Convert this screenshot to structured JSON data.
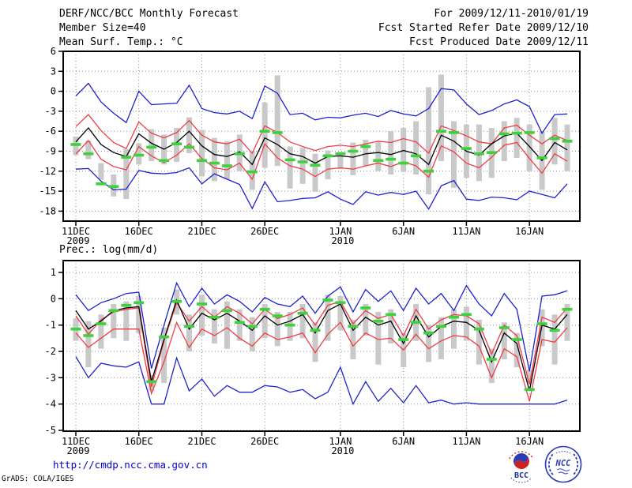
{
  "header": {
    "title": "DERF/NCC/BCC Monthly Forecast",
    "for_range": "For 2009/12/11-2010/01/19",
    "member_size": "Member Size=40",
    "fcst_started": "Fcst Started Refer Date 2009/12/10",
    "panel1_title": "Mean Surf. Temp.: °C",
    "fcst_produced": "Fcst Produced Date 2009/12/11",
    "panel2_title": "Prec.: log(mm/d)"
  },
  "footer": {
    "url": "http://cmdp.ncc.cma.gov.cn",
    "credit": "GrADS: COLA/IGES",
    "logos": {
      "bcc_label": "BCC",
      "ncc_label": "NCC"
    }
  },
  "palette": {
    "blue": "#1e22cc",
    "red": "#f03c46",
    "black": "#000000",
    "green": "#3cd23c",
    "gray_bar": "#c9c9c9",
    "grid": "#8f8f8f",
    "url_blue": "#0000cd",
    "logo_blue": "#2a3cb4",
    "logo_red": "#cc2222"
  },
  "chart_data": [
    {
      "type": "line",
      "title": "Mean Surf. Temp.: °C",
      "ylabel": "degC",
      "ylim": [
        6,
        -18
      ],
      "yticks": [
        6,
        3,
        0,
        -3,
        -6,
        -9,
        -12,
        -15,
        -18
      ],
      "n_points": 40,
      "x_start": "2009-12-11",
      "x_end": "2010-01-19",
      "x_ticks": [
        {
          "day": 0,
          "label": "11DEC",
          "sub": "2009"
        },
        {
          "day": 5,
          "label": "16DEC"
        },
        {
          "day": 10,
          "label": "21DEC"
        },
        {
          "day": 15,
          "label": "26DEC"
        },
        {
          "day": 21,
          "label": "1JAN",
          "sub": "2010"
        },
        {
          "day": 26,
          "label": "6JAN"
        },
        {
          "day": 31,
          "label": "11JAN"
        },
        {
          "day": 36,
          "label": "16JAN"
        }
      ],
      "series": [
        {
          "name": "ensemble-max",
          "color_key": "blue",
          "values": [
            -0.7,
            1.2,
            -1.6,
            -3.3,
            -4.7,
            0.0,
            -2.0,
            -1.9,
            -1.8,
            0.9,
            -2.6,
            -3.2,
            -3.4,
            -3.0,
            -4.1,
            0.8,
            -0.3,
            -3.5,
            -3.3,
            -4.3,
            -3.9,
            -4.0,
            -3.6,
            -3.3,
            -3.8,
            -2.9,
            -3.4,
            -3.7,
            -2.6,
            0.4,
            0.2,
            -1.9,
            -3.5,
            -2.9,
            -1.9,
            -1.3,
            -2.3,
            -6.3,
            -3.5,
            -3.4
          ]
        },
        {
          "name": "ensemble-mean-plus-spread",
          "color_key": "red",
          "values": [
            -5.3,
            -3.5,
            -5.9,
            -7.7,
            -8.6,
            -4.6,
            -6.3,
            -7.0,
            -6.2,
            -4.4,
            -6.6,
            -7.6,
            -7.9,
            -7.2,
            -9.3,
            -5.2,
            -6.2,
            -7.6,
            -8.3,
            -8.9,
            -8.3,
            -8.1,
            -8.3,
            -7.9,
            -7.5,
            -7.7,
            -7.1,
            -7.6,
            -9.3,
            -5.2,
            -5.9,
            -6.7,
            -7.6,
            -7.9,
            -5.5,
            -5.1,
            -6.6,
            -7.9,
            -6.6,
            -7.4
          ]
        },
        {
          "name": "ensemble-mean-minus-spread",
          "color_key": "red",
          "values": [
            -9.4,
            -7.4,
            -10.2,
            -11.3,
            -11.8,
            -8.3,
            -9.7,
            -10.7,
            -9.6,
            -7.9,
            -10.1,
            -11.5,
            -11.8,
            -10.8,
            -13.2,
            -7.9,
            -10.0,
            -11.2,
            -11.7,
            -12.8,
            -11.7,
            -11.5,
            -11.7,
            -11.2,
            -10.8,
            -11.3,
            -10.6,
            -11.2,
            -12.9,
            -8.2,
            -9.1,
            -10.8,
            -11.5,
            -9.9,
            -8.1,
            -7.7,
            -10.1,
            -12.3,
            -9.4,
            -10.5
          ]
        },
        {
          "name": "ensemble-min",
          "color_key": "blue",
          "values": [
            -11.7,
            -11.6,
            -13.5,
            -14.8,
            -14.7,
            -11.9,
            -12.3,
            -12.4,
            -12.2,
            -11.5,
            -13.9,
            -12.4,
            -13.2,
            -14.0,
            -17.6,
            -13.6,
            -16.6,
            -16.4,
            -16.1,
            -16.0,
            -15.1,
            -16.2,
            -17.0,
            -15.1,
            -15.6,
            -15.2,
            -15.5,
            -15.0,
            -17.7,
            -14.2,
            -13.4,
            -16.2,
            -16.4,
            -15.9,
            -16.0,
            -16.3,
            -15.0,
            -15.5,
            -16.0,
            -13.9
          ]
        },
        {
          "name": "ensemble-mean",
          "color_key": "black",
          "values": [
            -7.6,
            -5.5,
            -8.0,
            -9.2,
            -9.8,
            -6.4,
            -7.8,
            -8.7,
            -7.7,
            -6.0,
            -8.2,
            -9.5,
            -9.8,
            -9.1,
            -11.0,
            -7.0,
            -8.0,
            -9.4,
            -9.8,
            -10.8,
            -9.8,
            -9.7,
            -9.9,
            -9.4,
            -9.2,
            -9.5,
            -8.9,
            -9.4,
            -11.0,
            -6.6,
            -7.5,
            -9.0,
            -9.6,
            -7.9,
            -6.7,
            -6.3,
            -8.3,
            -10.4,
            -7.7,
            -8.8
          ]
        }
      ],
      "bars": {
        "name": "member-spread-bar",
        "lo": [
          -9.6,
          -10.2,
          -13.3,
          -15.8,
          -16.2,
          -11.0,
          -10.5,
          -11.0,
          -10.6,
          -9.3,
          -12.8,
          -13.5,
          -13.2,
          -12.0,
          -14.8,
          -11.5,
          -11.2,
          -14.6,
          -13.9,
          -15.1,
          -13.2,
          -11.7,
          -12.6,
          -11.2,
          -12.0,
          -12.5,
          -12.1,
          -12.5,
          -15.5,
          -10.5,
          -14.5,
          -13.0,
          -13.5,
          -13.0,
          -10.5,
          -10.0,
          -12.0,
          -14.8,
          -11.0,
          -12.0
        ],
        "hi": [
          -6.8,
          -7.4,
          -10.8,
          -12.5,
          -8.7,
          -7.8,
          -5.7,
          -6.5,
          -5.5,
          -3.9,
          -5.8,
          -7.0,
          -7.5,
          -6.5,
          -9.0,
          -1.7,
          2.4,
          -8.3,
          -8.5,
          -9.4,
          -8.9,
          -9.1,
          -7.7,
          -7.3,
          -7.5,
          -6.0,
          -5.5,
          -4.5,
          0.6,
          2.5,
          -4.5,
          -5.0,
          -5.0,
          -5.5,
          -4.5,
          -4.0,
          -5.0,
          -6.0,
          -4.0,
          -5.0
        ]
      },
      "obs": [
        -8.0,
        -9.4,
        -13.9,
        -14.3,
        -9.9,
        -9.6,
        -8.4,
        -10.4,
        -7.9,
        -8.4,
        -10.4,
        -10.8,
        -11.2,
        -9.4,
        -12.1,
        -6.0,
        -6.2,
        -10.3,
        -10.6,
        -11.1,
        -9.7,
        -9.4,
        -9.0,
        -8.3,
        -10.4,
        -10.2,
        -10.8,
        -9.7,
        -12.0,
        -6.0,
        -6.2,
        -8.6,
        -9.4,
        -9.2,
        -6.4,
        -6.3,
        -6.2,
        -10.0,
        -7.1,
        -7.5
      ]
    },
    {
      "type": "line",
      "title": "Prec.: log(mm/d)",
      "ylabel": "log(mm/d)",
      "ylim": [
        1,
        -5
      ],
      "yticks": [
        1,
        0,
        -1,
        -2,
        -3,
        -4,
        -5
      ],
      "n_points": 40,
      "x_start": "2009-12-11",
      "x_end": "2010-01-19",
      "x_ticks": [
        {
          "day": 0,
          "label": "11DEC",
          "sub": "2009"
        },
        {
          "day": 5,
          "label": "16DEC"
        },
        {
          "day": 10,
          "label": "21DEC"
        },
        {
          "day": 15,
          "label": "26DEC"
        },
        {
          "day": 21,
          "label": "1JAN",
          "sub": "2010"
        },
        {
          "day": 26,
          "label": "6JAN"
        },
        {
          "day": 31,
          "label": "11JAN"
        },
        {
          "day": 36,
          "label": "16JAN"
        }
      ],
      "series": [
        {
          "name": "ensemble-max",
          "color_key": "blue",
          "values": [
            0.15,
            -0.45,
            -0.15,
            0.0,
            0.2,
            0.25,
            -2.65,
            -1.0,
            0.6,
            -0.3,
            0.4,
            -0.2,
            0.15,
            -0.1,
            -0.5,
            0.05,
            -0.2,
            -0.3,
            0.1,
            -0.55,
            0.1,
            0.45,
            -0.5,
            0.35,
            -0.1,
            0.3,
            -0.45,
            0.4,
            -0.2,
            0.2,
            -0.45,
            0.5,
            -0.2,
            -0.65,
            0.2,
            -0.4,
            -2.75,
            0.1,
            0.15,
            0.3
          ]
        },
        {
          "name": "ensemble-mean-plus-spread",
          "color_key": "red",
          "values": [
            -0.65,
            -1.35,
            -0.8,
            -0.5,
            -0.4,
            -0.35,
            -3.35,
            -1.6,
            -0.15,
            -0.85,
            -0.3,
            -0.7,
            -0.3,
            -0.55,
            -0.95,
            -0.4,
            -0.75,
            -0.6,
            -0.35,
            -1.0,
            -0.25,
            -0.1,
            -0.95,
            -0.45,
            -0.75,
            -0.6,
            -1.4,
            -0.4,
            -1.15,
            -0.8,
            -0.6,
            -0.65,
            -0.95,
            -2.1,
            -1.0,
            -1.4,
            -3.25,
            -0.7,
            -0.9,
            -0.35
          ]
        },
        {
          "name": "ensemble-mean-minus-spread",
          "color_key": "red",
          "values": [
            -1.3,
            -1.85,
            -1.5,
            -1.15,
            -1.15,
            -1.15,
            -3.6,
            -2.4,
            -0.9,
            -1.85,
            -1.15,
            -1.4,
            -1.1,
            -1.5,
            -1.8,
            -1.3,
            -1.55,
            -1.45,
            -1.3,
            -2.05,
            -1.35,
            -0.9,
            -1.8,
            -1.3,
            -1.55,
            -1.5,
            -1.95,
            -1.35,
            -1.9,
            -1.6,
            -1.4,
            -1.45,
            -1.8,
            -3.0,
            -1.9,
            -2.2,
            -3.9,
            -1.55,
            -1.65,
            -1.1
          ]
        },
        {
          "name": "ensemble-min",
          "color_key": "blue",
          "values": [
            -2.2,
            -3.0,
            -2.45,
            -2.55,
            -2.6,
            -2.4,
            -4.0,
            -4.0,
            -2.25,
            -3.5,
            -3.05,
            -3.7,
            -3.3,
            -3.55,
            -3.55,
            -3.3,
            -3.35,
            -3.55,
            -3.45,
            -3.8,
            -3.55,
            -2.6,
            -4.0,
            -3.15,
            -3.9,
            -3.4,
            -3.95,
            -3.3,
            -3.95,
            -3.85,
            -4.0,
            -3.95,
            -4.0,
            -4.0,
            -4.0,
            -4.0,
            -4.0,
            -4.0,
            -4.0,
            -3.85
          ]
        },
        {
          "name": "ensemble-mean",
          "color_key": "black",
          "values": [
            -0.45,
            -1.15,
            -0.85,
            -0.45,
            -0.35,
            -0.3,
            -3.15,
            -1.55,
            -0.05,
            -1.15,
            -0.55,
            -0.8,
            -0.55,
            -0.85,
            -1.2,
            -0.65,
            -1.0,
            -0.85,
            -0.6,
            -1.3,
            -0.45,
            -0.2,
            -1.2,
            -0.7,
            -1.0,
            -0.85,
            -1.7,
            -0.65,
            -1.45,
            -1.05,
            -0.85,
            -0.9,
            -1.2,
            -2.4,
            -1.3,
            -1.7,
            -3.5,
            -1.0,
            -1.15,
            -0.6
          ]
        }
      ],
      "bars": {
        "name": "member-spread-bar",
        "lo": [
          -1.6,
          -2.6,
          -1.9,
          -1.5,
          -1.6,
          -1.3,
          -3.5,
          -3.2,
          -0.6,
          -2.0,
          -1.4,
          -1.7,
          -1.9,
          -1.6,
          -2.0,
          -1.5,
          -1.8,
          -1.6,
          -1.5,
          -2.4,
          -1.6,
          -1.2,
          -2.3,
          -1.4,
          -2.5,
          -1.7,
          -2.6,
          -1.6,
          -2.4,
          -2.3,
          -1.9,
          -1.6,
          -2.5,
          -3.2,
          -2.3,
          -2.6,
          -3.2,
          -1.8,
          -2.5,
          -1.6
        ],
        "hi": [
          -0.75,
          -0.85,
          -0.6,
          -0.2,
          -0.1,
          0.1,
          -2.9,
          -1.1,
          0.35,
          -0.6,
          0.15,
          -0.4,
          -0.1,
          -0.4,
          -0.7,
          -0.2,
          -0.5,
          -0.5,
          -0.2,
          -0.9,
          0.15,
          0.1,
          -0.8,
          -0.2,
          -0.5,
          -0.4,
          -1.3,
          -0.2,
          -1.0,
          -0.7,
          -0.4,
          -0.3,
          -0.8,
          -1.9,
          -0.9,
          -1.3,
          -2.7,
          -0.4,
          -0.6,
          -0.2
        ]
      },
      "obs": [
        -1.15,
        -1.4,
        -0.95,
        -0.45,
        -0.25,
        -0.15,
        -3.15,
        -1.45,
        -0.1,
        -1.05,
        -0.2,
        -0.7,
        -0.45,
        -0.9,
        -1.05,
        -0.4,
        -0.65,
        -1.0,
        -0.55,
        -1.2,
        -0.05,
        -0.15,
        -1.05,
        -0.35,
        -0.85,
        -0.6,
        -1.55,
        -0.9,
        -1.3,
        -1.05,
        -0.7,
        -0.6,
        -1.15,
        -2.3,
        -1.1,
        -1.55,
        -3.45,
        -0.95,
        -1.2,
        -0.4
      ]
    }
  ]
}
